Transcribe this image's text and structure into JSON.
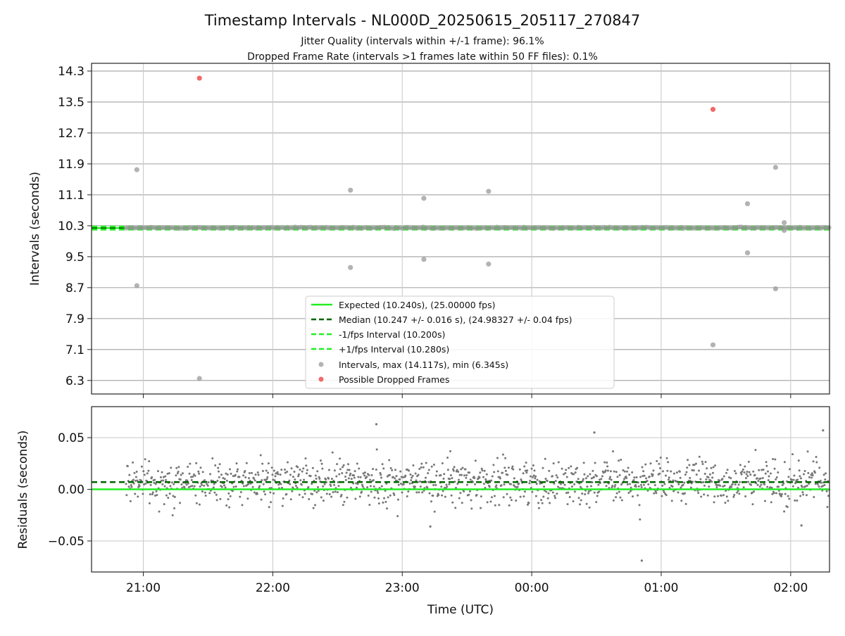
{
  "title": "Timestamp Intervals - NL000D_20250615_205117_270847",
  "subtitle_1": "Jitter Quality (intervals within +/-1 frame): 96.1%",
  "subtitle_2": "Dropped Frame Rate (intervals >1 frames late within 50 FF files): 0.1%",
  "chart_data": [
    {
      "type": "scatter",
      "panel": "top",
      "ylabel": "Intervals (seconds)",
      "xlim": [
        "20:36",
        "02:18"
      ],
      "ylim": [
        5.95,
        14.5
      ],
      "yticks": [
        "6.3",
        "7.1",
        "7.9",
        "8.7",
        "9.5",
        "10.3",
        "11.1",
        "11.9",
        "12.7",
        "13.5",
        "14.3"
      ],
      "grid": true,
      "legend_position": "lower-center",
      "reference_lines": [
        {
          "name": "Expected (10.240s), (25.00000 fps)",
          "y": 10.24,
          "style": "solid",
          "color": "#22ee22"
        },
        {
          "name": "Median (10.247 +/- 0.016 s), (24.98327 +/- 0.04 fps)",
          "y": 10.247,
          "style": "dashed",
          "color": "#006600"
        },
        {
          "name": "-1/fps Interval (10.200s)",
          "y": 10.2,
          "style": "dashed",
          "color": "#22ee22"
        },
        {
          "name": "+1/fps Interval (10.280s)",
          "y": 10.28,
          "style": "dashed",
          "color": "#22ee22"
        }
      ],
      "intervals_series": {
        "name": "Intervals, max (14.117s), min (6.345s)",
        "color": "#999999",
        "points": [
          {
            "t": "20:57",
            "y": 11.75
          },
          {
            "t": "20:57",
            "y": 8.75
          },
          {
            "t": "21:26",
            "y": 6.35
          },
          {
            "t": "22:36",
            "y": 11.22
          },
          {
            "t": "22:36",
            "y": 9.22
          },
          {
            "t": "23:10",
            "y": 11.01
          },
          {
            "t": "23:10",
            "y": 9.43
          },
          {
            "t": "23:40",
            "y": 11.19
          },
          {
            "t": "23:40",
            "y": 9.31
          },
          {
            "t": "01:24",
            "y": 7.22
          },
          {
            "t": "01:40",
            "y": 10.87
          },
          {
            "t": "01:40",
            "y": 9.6
          },
          {
            "t": "01:53",
            "y": 11.81
          },
          {
            "t": "01:53",
            "y": 8.67
          },
          {
            "t": "01:57",
            "y": 10.38
          },
          {
            "t": "01:57",
            "y": 10.18
          }
        ]
      },
      "dropped_series": {
        "name": "Possible Dropped Frames",
        "color": "#ee4444",
        "points": [
          {
            "t": "21:26",
            "y": 14.117
          },
          {
            "t": "01:24",
            "y": 13.31
          }
        ]
      }
    },
    {
      "type": "scatter",
      "panel": "bottom",
      "xlabel": "Time (UTC)",
      "ylabel": "Residuals (seconds)",
      "xlim": [
        "20:36",
        "02:18"
      ],
      "ylim": [
        -0.08,
        0.08
      ],
      "yticks": [
        "−0.05",
        "0.00",
        "0.05"
      ],
      "xticks": [
        "21:00",
        "22:00",
        "23:00",
        "00:00",
        "01:00",
        "02:00"
      ],
      "grid": true,
      "reference_lines": [
        {
          "y": 0.0,
          "style": "solid",
          "color": "#22ee22"
        },
        {
          "y": 0.007,
          "style": "dashed",
          "color": "#006600"
        }
      ],
      "residuals": {
        "color": "#777777",
        "t_start": "20:52",
        "t_end": "02:18",
        "mean": 0.007,
        "spread": 0.016,
        "outliers": [
          {
            "t": "22:48",
            "y": 0.063
          },
          {
            "t": "00:51",
            "y": -0.069
          },
          {
            "t": "00:29",
            "y": 0.055
          },
          {
            "t": "02:15",
            "y": 0.057
          },
          {
            "t": "23:13",
            "y": -0.036
          },
          {
            "t": "02:05",
            "y": -0.035
          }
        ]
      }
    }
  ]
}
